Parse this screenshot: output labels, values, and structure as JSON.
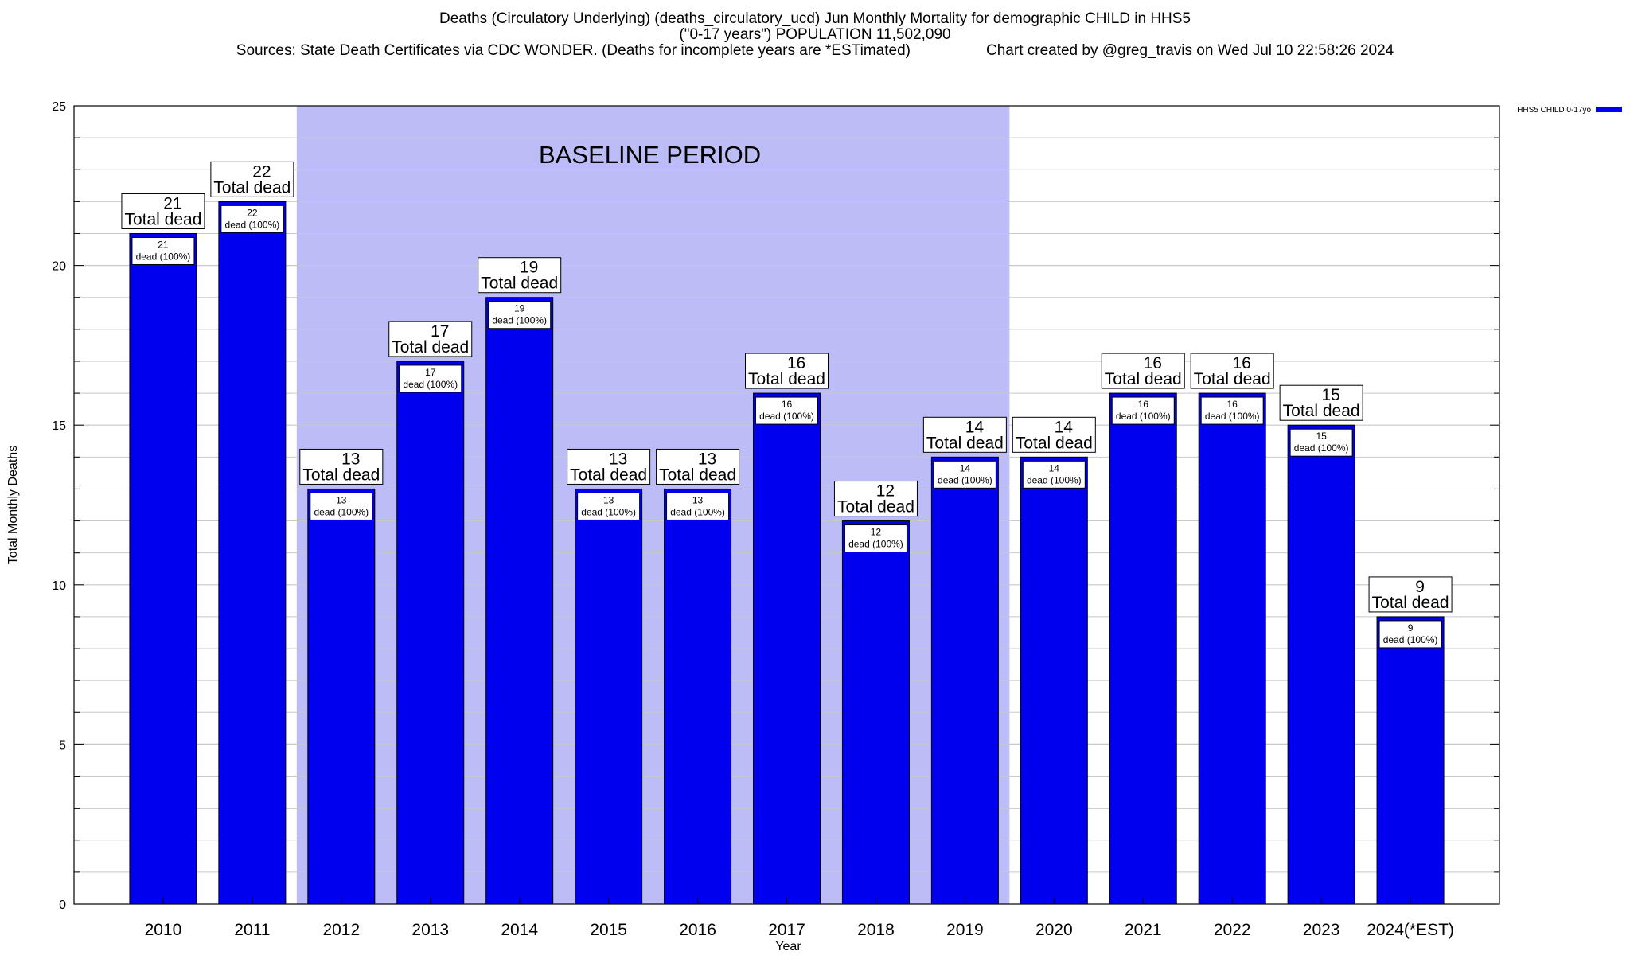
{
  "header": {
    "title_line1": "Deaths (Circulatory Underlying) (deaths_circulatory_ucd) Jun Monthly Mortality for demographic CHILD in HHS5",
    "title_line2": "(\"0-17 years\") POPULATION 11,502,090",
    "sources": "Sources: State Death Certificates via CDC WONDER. (Deaths for incomplete years are *ESTimated)",
    "credit": "Chart created by @greg_travis on Wed Jul 10 22:58:26 2024"
  },
  "colors": {
    "bar_fill": "#0000ee",
    "baseline_fill": "#bcbcf7",
    "grid": "#c8c8c8",
    "label_box": "#ffffff"
  },
  "chart_data": {
    "type": "bar",
    "title": "Deaths (Circulatory Underlying) (deaths_circulatory_ucd) Jun Monthly Mortality for demographic CHILD in HHS5",
    "xlabel": "Year",
    "ylabel": "Total Monthly Deaths",
    "ylim": [
      0,
      25
    ],
    "yticks": [
      0,
      5,
      10,
      15,
      20,
      25
    ],
    "grid": true,
    "legend_position": "top-right",
    "categories": [
      "2010",
      "2011",
      "2012",
      "2013",
      "2014",
      "2015",
      "2016",
      "2017",
      "2018",
      "2019",
      "2020",
      "2021",
      "2022",
      "2023",
      "2024(*EST)"
    ],
    "series": [
      {
        "name": "HHS5 CHILD 0-17yo",
        "values": [
          21,
          22,
          13,
          17,
          19,
          13,
          13,
          16,
          12,
          14,
          14,
          16,
          16,
          15,
          9
        ]
      }
    ],
    "top_label_suffix": "Total dead",
    "inner_label_suffix": "dead (100%)",
    "baseline_period": {
      "label": "BASELINE PERIOD",
      "start": "2012",
      "end": "2019"
    }
  }
}
